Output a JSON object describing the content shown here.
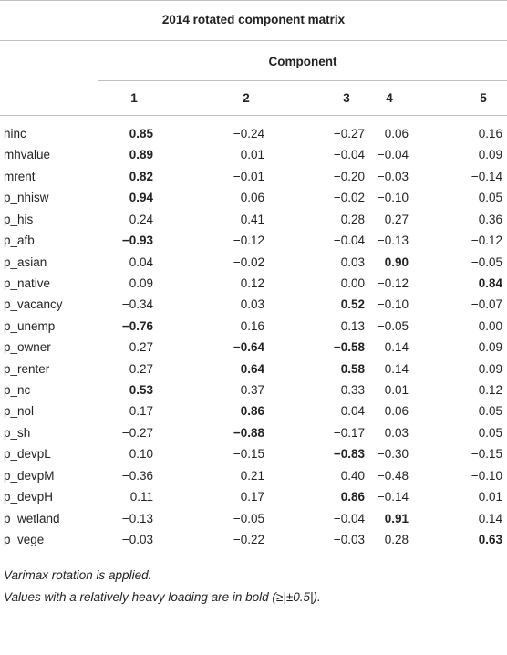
{
  "table": {
    "title": "2014 rotated component matrix",
    "group_header": "Component",
    "columns": [
      "1",
      "2",
      "3",
      "4",
      "5"
    ],
    "rows": [
      {
        "label": "hinc",
        "cells": [
          "0.85",
          "−0.24",
          "−0.27",
          "0.06",
          "0.16"
        ],
        "bold": [
          0
        ]
      },
      {
        "label": "mhvalue",
        "cells": [
          "0.89",
          "0.01",
          "−0.04",
          "−0.04",
          "0.09"
        ],
        "bold": [
          0
        ]
      },
      {
        "label": "mrent",
        "cells": [
          "0.82",
          "−0.01",
          "−0.20",
          "−0.03",
          "−0.14"
        ],
        "bold": [
          0
        ]
      },
      {
        "label": "p_nhisw",
        "cells": [
          "0.94",
          "0.06",
          "−0.02",
          "−0.10",
          "0.05"
        ],
        "bold": [
          0
        ]
      },
      {
        "label": "p_his",
        "cells": [
          "0.24",
          "0.41",
          "0.28",
          "0.27",
          "0.36"
        ],
        "bold": []
      },
      {
        "label": "p_afb",
        "cells": [
          "−0.93",
          "−0.12",
          "−0.04",
          "−0.13",
          "−0.12"
        ],
        "bold": [
          0
        ]
      },
      {
        "label": "p_asian",
        "cells": [
          "0.04",
          "−0.02",
          "0.03",
          "0.90",
          "−0.05"
        ],
        "bold": [
          3
        ]
      },
      {
        "label": "p_native",
        "cells": [
          "0.09",
          "0.12",
          "0.00",
          "−0.12",
          "0.84"
        ],
        "bold": [
          4
        ]
      },
      {
        "label": "p_vacancy",
        "cells": [
          "−0.34",
          "0.03",
          "0.52",
          "−0.10",
          "−0.07"
        ],
        "bold": [
          2
        ]
      },
      {
        "label": "p_unemp",
        "cells": [
          "−0.76",
          "0.16",
          "0.13",
          "−0.05",
          "0.00"
        ],
        "bold": [
          0
        ]
      },
      {
        "label": "p_owner",
        "cells": [
          "0.27",
          "−0.64",
          "−0.58",
          "0.14",
          "0.09"
        ],
        "bold": [
          1,
          2
        ]
      },
      {
        "label": "p_renter",
        "cells": [
          "−0.27",
          "0.64",
          "0.58",
          "−0.14",
          "−0.09"
        ],
        "bold": [
          1,
          2
        ]
      },
      {
        "label": "p_nc",
        "cells": [
          "0.53",
          "0.37",
          "0.33",
          "−0.01",
          "−0.12"
        ],
        "bold": [
          0
        ]
      },
      {
        "label": "p_nol",
        "cells": [
          "−0.17",
          "0.86",
          "0.04",
          "−0.06",
          "0.05"
        ],
        "bold": [
          1
        ]
      },
      {
        "label": "p_sh",
        "cells": [
          "−0.27",
          "−0.88",
          "−0.17",
          "0.03",
          "0.05"
        ],
        "bold": [
          1
        ]
      },
      {
        "label": "p_devpL",
        "cells": [
          "0.10",
          "−0.15",
          "−0.83",
          "−0.30",
          "−0.15"
        ],
        "bold": [
          2
        ]
      },
      {
        "label": "p_devpM",
        "cells": [
          "−0.36",
          "0.21",
          "0.40",
          "−0.48",
          "−0.10"
        ],
        "bold": []
      },
      {
        "label": "p_devpH",
        "cells": [
          "0.11",
          "0.17",
          "0.86",
          "−0.14",
          "0.01"
        ],
        "bold": [
          2
        ]
      },
      {
        "label": "p_wetland",
        "cells": [
          "−0.13",
          "−0.05",
          "−0.04",
          "0.91",
          "0.14"
        ],
        "bold": [
          3
        ]
      },
      {
        "label": "p_vege",
        "cells": [
          "−0.03",
          "−0.22",
          "−0.03",
          "0.28",
          "0.63"
        ],
        "bold": [
          4
        ]
      }
    ],
    "footnotes": [
      "Varimax rotation is applied.",
      "Values with a relatively heavy loading are in bold (≥|±0.5|)."
    ]
  }
}
